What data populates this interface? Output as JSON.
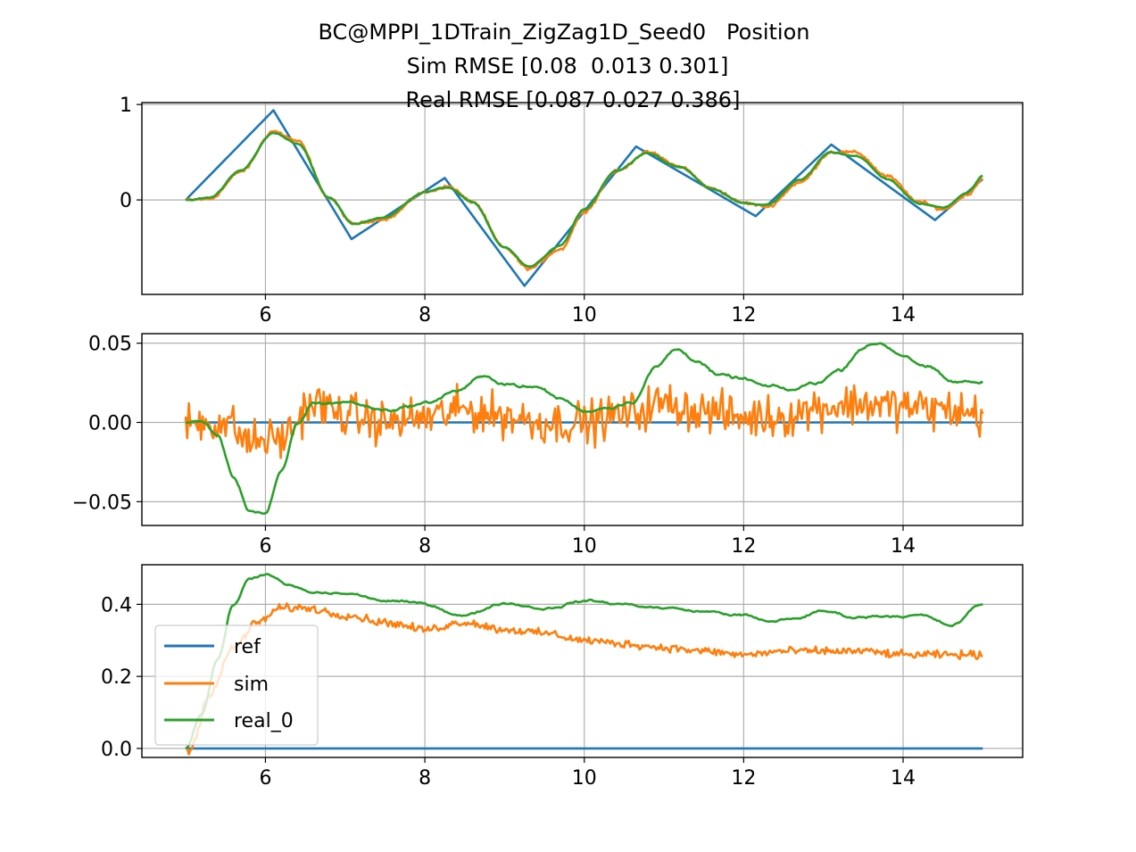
{
  "title_lines": [
    "BC@MPPI_1DTrain_ZigZag1D_Seed0   Position",
    "Sim RMSE [0.08  0.013 0.301]",
    "Real RMSE [0.087 0.027 0.386]"
  ],
  "colors": {
    "ref": "#1f77b4",
    "sim": "#ff7f0e",
    "real_0": "#2ca02c",
    "grid": "#b0b0b0"
  },
  "legend": {
    "placement": "lower-left",
    "subplot": 3,
    "entries": [
      "ref",
      "sim",
      "real_0"
    ]
  },
  "chart_data": [
    {
      "type": "line",
      "subplot": 1,
      "xlim": [
        4.45,
        15.5
      ],
      "ylim": [
        -0.99,
        1.02
      ],
      "grid": true,
      "xticks": [
        6,
        8,
        10,
        12,
        14
      ],
      "xtick_labels": [
        "6",
        "8",
        "10",
        "12",
        "14"
      ],
      "yticks": [
        0,
        1
      ],
      "ytick_labels": [
        "0",
        "1"
      ],
      "series": [
        {
          "name": "ref",
          "color": "#1f77b4",
          "x": [
            5.0,
            6.1,
            7.08,
            8.25,
            9.25,
            10.65,
            12.15,
            13.1,
            14.4,
            15.0
          ],
          "y": [
            0.0,
            0.94,
            -0.41,
            0.23,
            -0.9,
            0.56,
            -0.17,
            0.58,
            -0.21,
            0.22
          ]
        },
        {
          "name": "sim",
          "color": "#ff7f0e",
          "noise": 0.012,
          "x": [
            5.0,
            5.3,
            5.7,
            6.1,
            6.4,
            6.8,
            7.1,
            7.5,
            8.0,
            8.3,
            8.6,
            9.0,
            9.3,
            9.7,
            10.0,
            10.4,
            10.8,
            11.2,
            11.6,
            12.0,
            12.3,
            12.7,
            13.1,
            13.4,
            13.8,
            14.2,
            14.5,
            14.8,
            15.0
          ],
          "y": [
            0.0,
            0.01,
            0.3,
            0.72,
            0.62,
            0.02,
            -0.25,
            -0.2,
            0.08,
            0.14,
            -0.02,
            -0.5,
            -0.72,
            -0.52,
            -0.12,
            0.3,
            0.5,
            0.35,
            0.12,
            -0.03,
            -0.07,
            0.18,
            0.5,
            0.5,
            0.25,
            -0.02,
            -0.1,
            0.05,
            0.22
          ]
        },
        {
          "name": "real_0",
          "color": "#2ca02c",
          "noise": 0.004,
          "x": [
            5.0,
            5.3,
            5.7,
            6.1,
            6.4,
            6.8,
            7.1,
            7.5,
            8.0,
            8.3,
            8.6,
            9.0,
            9.3,
            9.7,
            10.0,
            10.4,
            10.8,
            11.2,
            11.6,
            12.0,
            12.3,
            12.7,
            13.1,
            13.4,
            13.8,
            14.2,
            14.5,
            14.8,
            15.0
          ],
          "y": [
            0.0,
            0.02,
            0.32,
            0.7,
            0.6,
            0.02,
            -0.25,
            -0.18,
            0.09,
            0.13,
            -0.03,
            -0.5,
            -0.7,
            -0.48,
            -0.1,
            0.3,
            0.48,
            0.34,
            0.11,
            -0.04,
            -0.05,
            0.2,
            0.5,
            0.47,
            0.22,
            -0.04,
            -0.08,
            0.08,
            0.25
          ]
        }
      ]
    },
    {
      "type": "line",
      "subplot": 2,
      "xlim": [
        4.45,
        15.5
      ],
      "ylim": [
        -0.065,
        0.056
      ],
      "grid": true,
      "xticks": [
        6,
        8,
        10,
        12,
        14
      ],
      "xtick_labels": [
        "6",
        "8",
        "10",
        "12",
        "14"
      ],
      "yticks": [
        -0.05,
        0.0,
        0.05
      ],
      "ytick_labels": [
        "−0.05",
        "0.00",
        "0.05"
      ],
      "series": [
        {
          "name": "ref",
          "color": "#1f77b4",
          "x": [
            5.0,
            15.0
          ],
          "y": [
            0.0,
            0.0
          ]
        },
        {
          "name": "sim",
          "color": "#ff7f0e",
          "noise": 0.011,
          "x": [
            5.0,
            5.5,
            5.8,
            6.2,
            6.6,
            7.0,
            7.5,
            8.0,
            8.5,
            9.0,
            9.5,
            10.0,
            10.5,
            11.0,
            11.5,
            12.0,
            12.5,
            13.0,
            13.5,
            14.0,
            14.5,
            15.0
          ],
          "y": [
            0.0,
            0.0,
            -0.012,
            -0.01,
            0.012,
            0.005,
            0.0,
            0.003,
            0.008,
            0.004,
            0.0,
            0.0,
            0.005,
            0.012,
            0.007,
            0.003,
            0.004,
            0.01,
            0.012,
            0.01,
            0.008,
            0.005
          ]
        },
        {
          "name": "real_0",
          "color": "#2ca02c",
          "noise": 0.0006,
          "x": [
            5.0,
            5.2,
            5.4,
            5.6,
            5.8,
            6.0,
            6.2,
            6.4,
            6.6,
            7.0,
            7.5,
            8.0,
            8.4,
            8.7,
            9.0,
            9.4,
            9.7,
            10.0,
            10.3,
            10.6,
            10.9,
            11.15,
            11.4,
            11.7,
            12.0,
            12.3,
            12.6,
            12.9,
            13.2,
            13.5,
            13.7,
            14.0,
            14.3,
            14.6,
            15.0
          ],
          "y": [
            0.0,
            0.0,
            -0.008,
            -0.035,
            -0.055,
            -0.057,
            -0.032,
            -0.002,
            0.012,
            0.013,
            0.008,
            0.012,
            0.02,
            0.028,
            0.025,
            0.022,
            0.015,
            0.007,
            0.01,
            0.014,
            0.035,
            0.046,
            0.04,
            0.029,
            0.027,
            0.022,
            0.02,
            0.025,
            0.033,
            0.048,
            0.05,
            0.043,
            0.035,
            0.025,
            0.025
          ]
        }
      ]
    },
    {
      "type": "line",
      "subplot": 3,
      "xlim": [
        4.45,
        15.5
      ],
      "ylim": [
        -0.025,
        0.51
      ],
      "grid": true,
      "xticks": [
        6,
        8,
        10,
        12,
        14
      ],
      "xtick_labels": [
        "6",
        "8",
        "10",
        "12",
        "14"
      ],
      "yticks": [
        0.0,
        0.2,
        0.4
      ],
      "ytick_labels": [
        "0.0",
        "0.2",
        "0.4"
      ],
      "series": [
        {
          "name": "ref",
          "color": "#1f77b4",
          "x": [
            5.0,
            15.0
          ],
          "y": [
            0.0,
            0.0
          ]
        },
        {
          "name": "sim",
          "color": "#ff7f0e",
          "noise": 0.009,
          "x": [
            5.0,
            5.05,
            5.3,
            5.6,
            5.9,
            6.2,
            6.5,
            7.0,
            7.5,
            8.0,
            8.5,
            9.0,
            9.5,
            10.0,
            10.5,
            11.0,
            11.5,
            12.0,
            12.5,
            13.0,
            13.5,
            14.0,
            14.5,
            15.0
          ],
          "y": [
            0.0,
            -0.005,
            0.15,
            0.28,
            0.35,
            0.39,
            0.39,
            0.37,
            0.35,
            0.33,
            0.35,
            0.33,
            0.32,
            0.3,
            0.29,
            0.28,
            0.27,
            0.26,
            0.27,
            0.27,
            0.27,
            0.26,
            0.26,
            0.26
          ]
        },
        {
          "name": "real_0",
          "color": "#2ca02c",
          "noise": 0.002,
          "x": [
            5.0,
            5.2,
            5.4,
            5.6,
            5.8,
            6.0,
            6.3,
            6.6,
            7.0,
            7.5,
            8.0,
            8.5,
            9.0,
            9.5,
            10.0,
            10.5,
            11.0,
            11.5,
            12.0,
            12.3,
            12.6,
            13.0,
            13.4,
            13.8,
            14.2,
            14.6,
            15.0
          ],
          "y": [
            0.0,
            0.1,
            0.25,
            0.4,
            0.47,
            0.485,
            0.45,
            0.43,
            0.43,
            0.41,
            0.4,
            0.37,
            0.405,
            0.39,
            0.41,
            0.4,
            0.39,
            0.38,
            0.37,
            0.35,
            0.36,
            0.38,
            0.365,
            0.37,
            0.37,
            0.34,
            0.4
          ]
        }
      ]
    }
  ]
}
